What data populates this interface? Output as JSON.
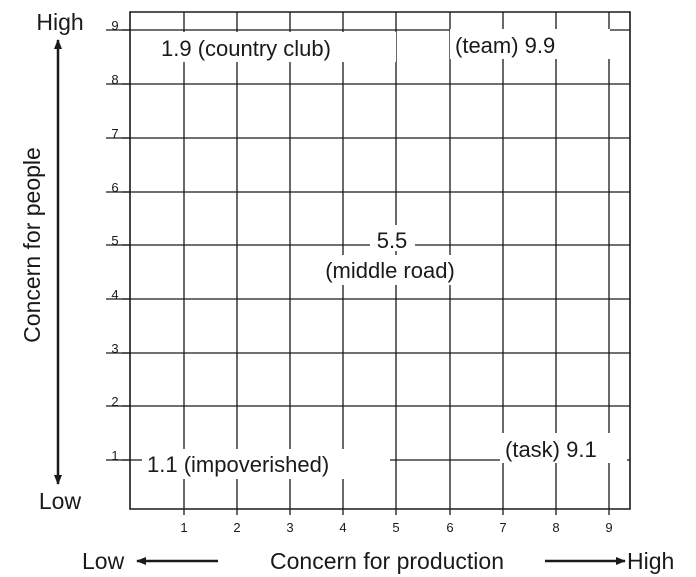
{
  "y_axis": {
    "title": "Concern for people",
    "high_label": "High",
    "low_label": "Low"
  },
  "x_axis": {
    "title": "Concern for production",
    "low_label": "Low",
    "high_label": "High"
  },
  "y_ticks": [
    "9",
    "8",
    "7",
    "6",
    "5",
    "4",
    "3",
    "2",
    "1"
  ],
  "x_ticks": [
    "1",
    "2",
    "3",
    "4",
    "5",
    "6",
    "7",
    "8",
    "9"
  ],
  "styles": {
    "country_club": {
      "text": "1.9 (country club)"
    },
    "team": {
      "text": "(team) 9.9"
    },
    "middle_road_score": {
      "text": "5.5"
    },
    "middle_road_name": {
      "text": "(middle road)"
    },
    "impoverished": {
      "text": "1.1 (impoverished)"
    },
    "task": {
      "text": "(task) 9.1"
    }
  }
}
